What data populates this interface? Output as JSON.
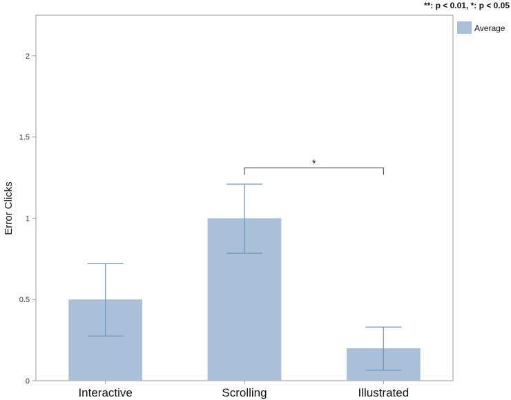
{
  "chart_data": {
    "type": "bar",
    "categories": [
      "Interactive",
      "Scrolling",
      "Illustrated"
    ],
    "series": [
      {
        "name": "Average",
        "values": [
          0.5,
          1.0,
          0.2
        ],
        "error_low": [
          0.275,
          0.785,
          0.065
        ],
        "error_high": [
          0.72,
          1.21,
          0.33
        ]
      }
    ],
    "ylabel": "Error Clicks",
    "xlabel": "",
    "ylim": [
      0,
      2.25
    ],
    "yticks": [
      0,
      0.5,
      1,
      1.5,
      2
    ],
    "ytick_labels": [
      "0",
      "0.5",
      "1",
      "1.5",
      "2"
    ],
    "significance": [
      {
        "from": "Scrolling",
        "to": "Illustrated",
        "label": "*",
        "y": 1.31
      }
    ],
    "note": "**: p < 0.01, *: p < 0.05",
    "legend_position": "top-right",
    "grid": false,
    "colors": {
      "bar": "#a9c0d8",
      "error": "#7098bf",
      "axis": "#999999",
      "bracket": "#333333"
    }
  }
}
